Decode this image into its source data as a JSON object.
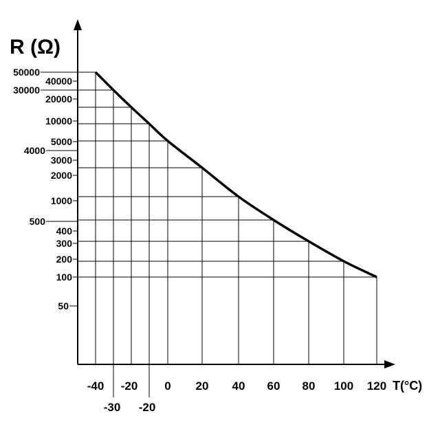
{
  "chart_data": {
    "type": "line",
    "xlabel": "T(°C)",
    "ylabel": "R (Ω)",
    "y_scale": "log",
    "x": [
      -40,
      -30,
      -25,
      -20,
      0,
      20,
      40,
      60,
      80,
      100,
      120
    ],
    "series": [
      {
        "values": [
          50000,
          30000,
          20000,
          10000,
          5000,
          2300,
          1100,
          550,
          330,
          190,
          100
        ]
      }
    ],
    "x_ticks_row1": [
      "-40",
      "-20",
      "0",
      "20",
      "40",
      "60",
      "80",
      "100",
      "120"
    ],
    "x_ticks_row2": [
      "-30",
      "-20"
    ],
    "y_ticks": [
      "50000",
      "40000",
      "30000",
      "20000",
      "10000",
      "5000",
      "4000",
      "3000",
      "2000",
      "1000",
      "500",
      "400",
      "300",
      "200",
      "100",
      "50"
    ],
    "grid": true,
    "colors": {
      "curve": "#000000",
      "grid": "#000000"
    }
  }
}
